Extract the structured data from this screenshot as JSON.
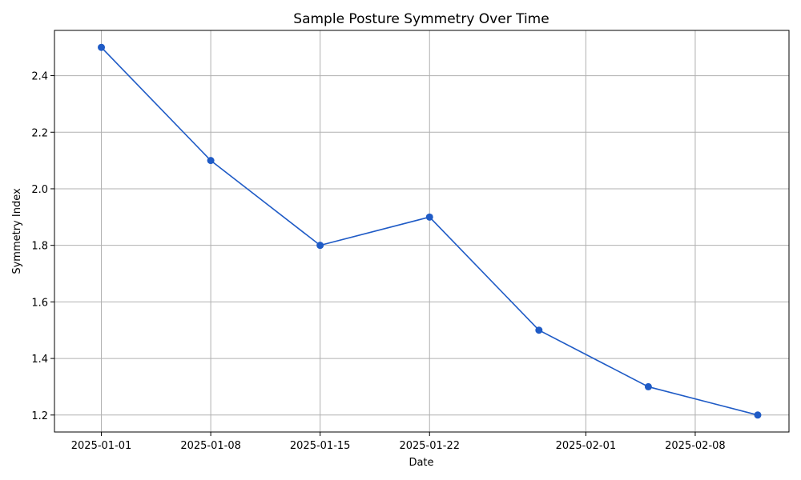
{
  "chart_data": {
    "type": "line",
    "title": "Sample Posture Symmetry Over Time",
    "xlabel": "Date",
    "ylabel": "Symmetry Index",
    "x": [
      "2025-01-01",
      "2025-01-08",
      "2025-01-15",
      "2025-01-22",
      "2025-01-29",
      "2025-02-05",
      "2025-02-12"
    ],
    "series": [
      {
        "values": [
          2.5,
          2.1,
          1.8,
          1.9,
          1.5,
          1.3,
          1.2
        ],
        "color": "#1f5bc6",
        "marker": "circle"
      }
    ],
    "xlim": [
      "2024-12-29",
      "2025-02-14"
    ],
    "ylim": [
      1.14,
      2.56
    ],
    "xticks": [
      "2025-01-01",
      "2025-01-08",
      "2025-01-15",
      "2025-01-22",
      "2025-02-01",
      "2025-02-08"
    ],
    "yticks": [
      "1.2",
      "1.4",
      "1.6",
      "1.8",
      "2.0",
      "2.2",
      "2.4"
    ],
    "grid": true
  }
}
